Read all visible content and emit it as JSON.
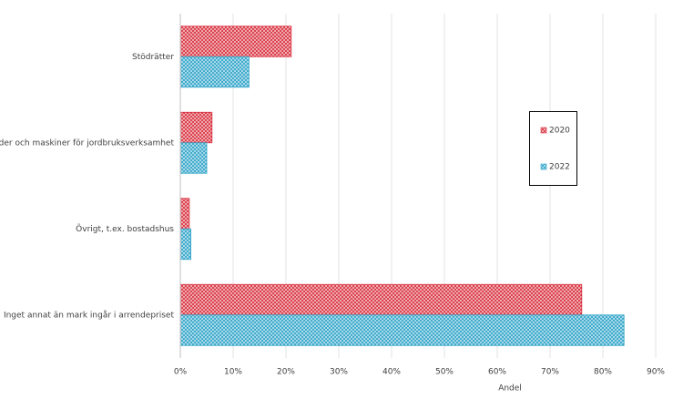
{
  "chart_data": {
    "type": "hbar",
    "categories": [
      "Stödrätter",
      "Byggnader och maskiner för jordbruksverksamhet",
      "Övrigt, t.ex. bostadshus",
      "Inget annat än mark ingår i arrendepriset"
    ],
    "series": [
      {
        "name": "2020",
        "color": "#d9303e",
        "values": [
          21,
          6,
          1.7,
          76
        ]
      },
      {
        "name": "2022",
        "color": "#2ea3c9",
        "values": [
          13,
          5,
          2,
          84
        ]
      }
    ],
    "xlabel": "Andel",
    "xlim": [
      0,
      90
    ],
    "xticks": [
      {
        "value": 0,
        "label": "0%"
      },
      {
        "value": 10,
        "label": "10%"
      },
      {
        "value": 20,
        "label": "20%"
      },
      {
        "value": 30,
        "label": "30%"
      },
      {
        "value": 40,
        "label": "40%"
      },
      {
        "value": 50,
        "label": "50%"
      },
      {
        "value": 60,
        "label": "60%"
      },
      {
        "value": 70,
        "label": "70%"
      },
      {
        "value": 80,
        "label": "80%"
      },
      {
        "value": 90,
        "label": "90%"
      }
    ],
    "grid": true,
    "legend": "right"
  }
}
